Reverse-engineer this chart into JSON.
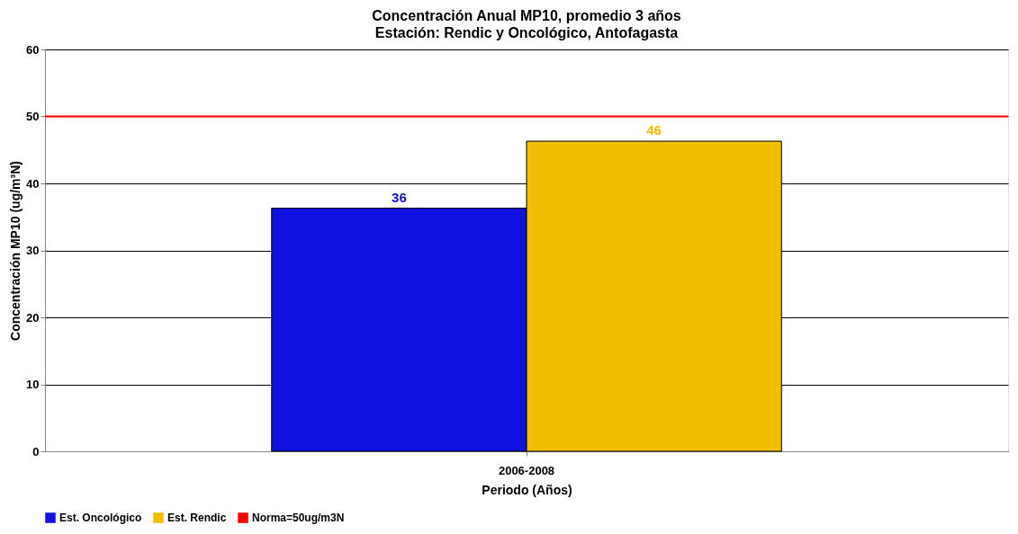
{
  "chart_data": {
    "type": "bar",
    "title": "Concentración Anual MP10, promedio 3 años",
    "subtitle": "Estación: Rendic y Oncológico, Antofagasta",
    "xlabel": "Periodo (Años)",
    "ylabel": "Concentración MP10 (ug/m³N)",
    "categories": [
      "2006-2008"
    ],
    "series": [
      {
        "name": "Est. Oncológico",
        "color": "#1010e0",
        "values": [
          36.3
        ],
        "value_labels": [
          "36"
        ]
      },
      {
        "name": "Est. Rendic",
        "color": "#f0c000",
        "values": [
          46.3
        ],
        "value_labels": [
          "46"
        ]
      }
    ],
    "ref_lines": [
      {
        "axis": "y",
        "value": 50,
        "label": "Norma=50ug/m3N",
        "color": "#ff0000"
      }
    ],
    "ylim": [
      0,
      60
    ],
    "yticks": [
      0,
      10,
      20,
      30,
      40,
      50,
      60
    ],
    "grid": "y",
    "legend": "bottom"
  }
}
